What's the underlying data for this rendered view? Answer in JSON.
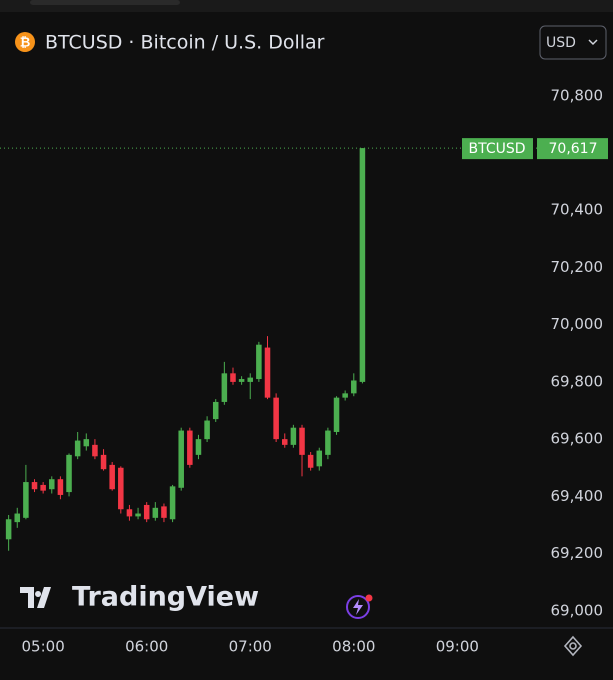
{
  "chart_data": {
    "type": "candlestick",
    "title": "BTCUSD · Bitcoin / U.S. Dollar",
    "currency": "USD",
    "symbol": "BTCUSD",
    "watermark": "TradingView",
    "open": [
      69250,
      69310,
      69325,
      69450,
      69440,
      69425,
      69460,
      69415,
      69540,
      69575,
      69580,
      69545,
      69510,
      69500,
      69355,
      69330,
      69370,
      69325,
      69365,
      69320,
      69430,
      69630,
      69545,
      69600,
      69670,
      69730,
      69830,
      69800,
      69800,
      69810,
      69920,
      69745,
      69600,
      69580,
      69640,
      69545,
      69505,
      69545,
      69625,
      69745,
      69760,
      69800
    ],
    "high": [
      69335,
      69360,
      69510,
      69460,
      69450,
      69470,
      69470,
      69550,
      69625,
      69620,
      69600,
      69565,
      69520,
      69505,
      69370,
      69360,
      69380,
      69380,
      69375,
      69440,
      69640,
      69640,
      69615,
      69680,
      69740,
      69870,
      69850,
      69820,
      69830,
      69940,
      69960,
      69760,
      69620,
      69650,
      69650,
      69555,
      69570,
      69640,
      69750,
      69770,
      69830,
      70617
    ],
    "low": [
      69210,
      69290,
      69320,
      69415,
      69410,
      69410,
      69390,
      69400,
      69530,
      69560,
      69530,
      69490,
      69420,
      69340,
      69315,
      69320,
      69310,
      69315,
      69310,
      69310,
      69420,
      69500,
      69530,
      69590,
      69660,
      69720,
      69790,
      69790,
      69740,
      69800,
      69740,
      69590,
      69570,
      69570,
      69470,
      69490,
      69490,
      69530,
      69615,
      69735,
      69750,
      69795
    ],
    "close": [
      69320,
      69340,
      69450,
      69425,
      69420,
      69460,
      69405,
      69545,
      69595,
      69600,
      69540,
      69495,
      69425,
      69355,
      69330,
      69340,
      69320,
      69360,
      69325,
      69435,
      69630,
      69510,
      69600,
      69665,
      69730,
      69830,
      69800,
      69810,
      69815,
      69930,
      69745,
      69600,
      69580,
      69640,
      69545,
      69500,
      69560,
      69630,
      69745,
      69760,
      69805,
      70617
    ],
    "up_color": "#4caf50",
    "down_color": "#f23645",
    "last_price": {
      "value": 70617,
      "label": "70,617"
    },
    "xlim": [
      -1,
      61
    ],
    "xticks": [
      {
        "value": 4,
        "label": "05:00"
      },
      {
        "value": 16,
        "label": "06:00"
      },
      {
        "value": 28,
        "label": "07:00"
      },
      {
        "value": 40,
        "label": "08:00"
      },
      {
        "value": 52,
        "label": "09:00"
      }
    ],
    "ylim": [
      68940,
      70890
    ],
    "yticks": [
      {
        "value": 69000,
        "label": "69,000"
      },
      {
        "value": 69200,
        "label": "69,200"
      },
      {
        "value": 69400,
        "label": "69,400"
      },
      {
        "value": 69600,
        "label": "69,600"
      },
      {
        "value": 69800,
        "label": "69,800"
      },
      {
        "value": 70000,
        "label": "70,000"
      },
      {
        "value": 70200,
        "label": "70,200"
      },
      {
        "value": 70400,
        "label": "70,400"
      },
      {
        "value": 70800,
        "label": "70,800"
      }
    ],
    "grid": false
  }
}
